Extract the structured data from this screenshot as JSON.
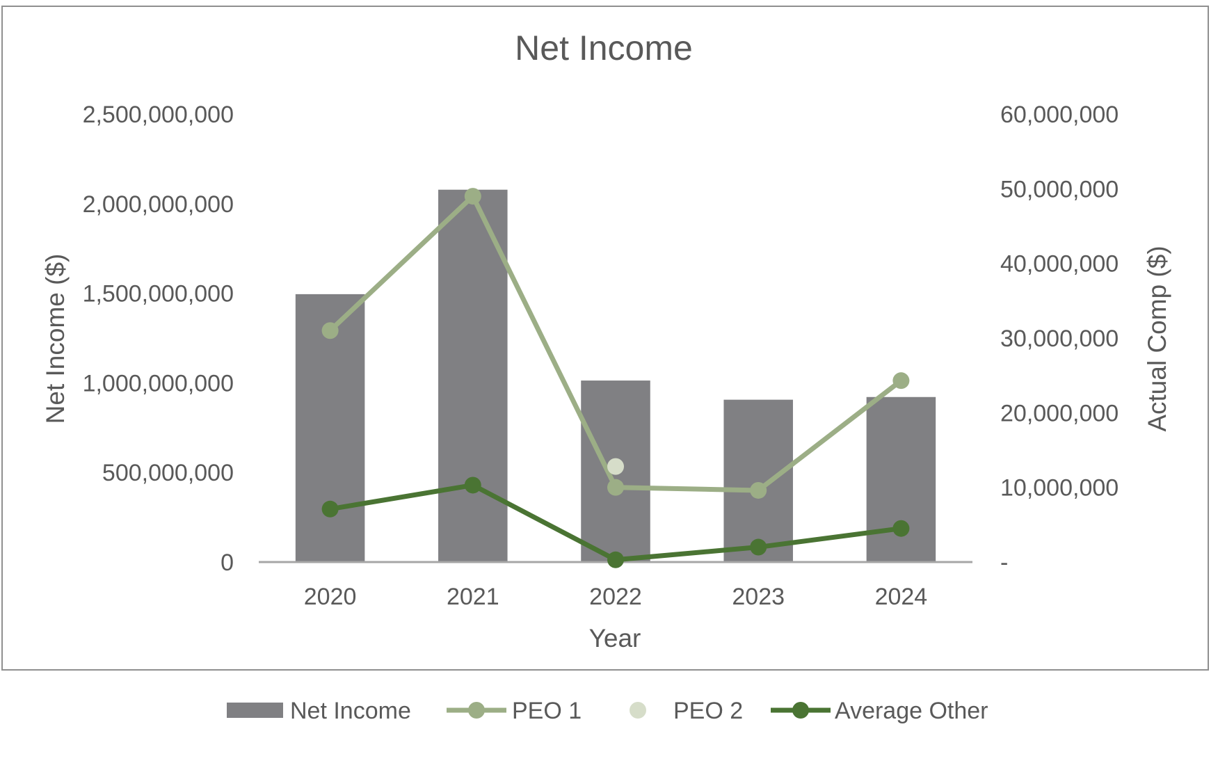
{
  "chart_data": {
    "type": "bar",
    "title": "Net Income",
    "xlabel": "Year",
    "ylabel": "Net Income ($)",
    "y2label": "Actual Comp ($)",
    "categories": [
      "2020",
      "2021",
      "2022",
      "2023",
      "2024"
    ],
    "ylim": [
      0,
      2500000000
    ],
    "y2lim": [
      0,
      60000000
    ],
    "yticks": [
      "0",
      "500,000,000",
      "1,000,000,000",
      "1,500,000,000",
      "2,000,000,000",
      "2,500,000,000"
    ],
    "y2ticks": [
      "-",
      "10,000,000",
      "20,000,000",
      "30,000,000",
      "40,000,000",
      "50,000,000",
      "60,000,000"
    ],
    "grid": false,
    "legend_position": "bottom",
    "series": [
      {
        "name": "Net Income",
        "type": "bar",
        "axis": "left",
        "color": "#808083",
        "values": [
          1495000000,
          2078000000,
          1013000000,
          906000000,
          921000000
        ]
      },
      {
        "name": "PEO 1",
        "type": "line",
        "axis": "right",
        "color": "#9cae86",
        "values": [
          31000000,
          49000000,
          10000000,
          9600000,
          24300000
        ]
      },
      {
        "name": "PEO 2",
        "type": "line",
        "axis": "right",
        "color": "#d6ddc9",
        "values": [
          null,
          null,
          12800000,
          null,
          null
        ]
      },
      {
        "name": "Average Other",
        "type": "line",
        "axis": "right",
        "color": "#4a7433",
        "values": [
          7100000,
          10300000,
          300000,
          2000000,
          4500000
        ]
      }
    ]
  }
}
